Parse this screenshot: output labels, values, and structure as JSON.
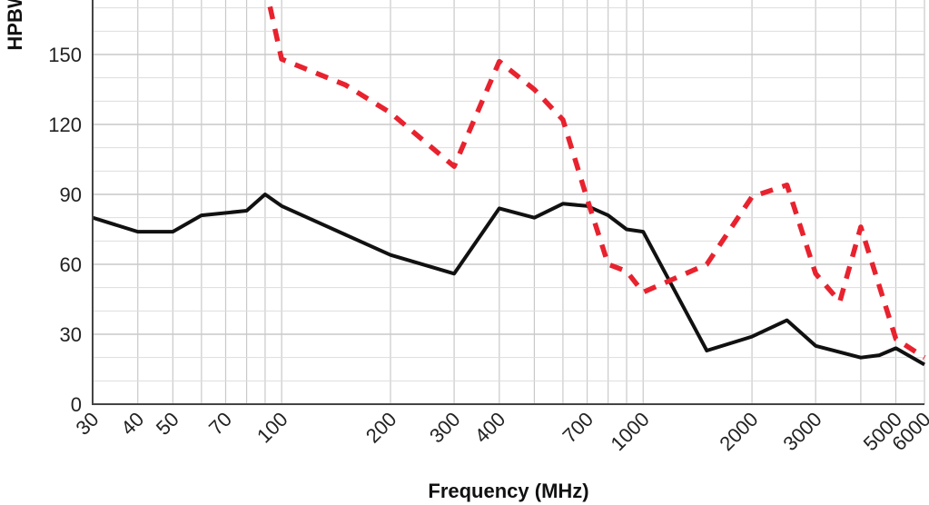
{
  "chart_data": {
    "type": "line",
    "title": "",
    "xlabel": "Frequency (MHz)",
    "ylabel": "HPBW",
    "x_scale": "log",
    "xlim": [
      30,
      6000
    ],
    "ylim": [
      0,
      170
    ],
    "grid": true,
    "x_ticks": [
      30,
      40,
      50,
      70,
      100,
      200,
      300,
      400,
      700,
      1000,
      2000,
      3000,
      5000,
      6000
    ],
    "x_tick_labels": [
      "30",
      "40",
      "50",
      "70",
      "100",
      "200",
      "300",
      "400",
      "700",
      "1000",
      "2000",
      "3000",
      "5000",
      "6000"
    ],
    "y_ticks": [
      0,
      30,
      60,
      90,
      120,
      150
    ],
    "y_tick_labels": [
      "0",
      "30",
      "60",
      "90",
      "120",
      "150"
    ],
    "colors": {
      "series_solid": "#111111",
      "series_dashed": "#e8222e",
      "grid": "#c9c9c9",
      "axis": "#444444"
    },
    "series": [
      {
        "style": "solid",
        "points": [
          [
            30,
            80
          ],
          [
            40,
            74
          ],
          [
            50,
            74
          ],
          [
            60,
            81
          ],
          [
            80,
            83
          ],
          [
            90,
            90
          ],
          [
            100,
            85
          ],
          [
            200,
            64
          ],
          [
            300,
            56
          ],
          [
            400,
            84
          ],
          [
            500,
            80
          ],
          [
            600,
            86
          ],
          [
            700,
            85
          ],
          [
            800,
            81
          ],
          [
            900,
            75
          ],
          [
            1000,
            74
          ],
          [
            1500,
            23
          ],
          [
            2000,
            29
          ],
          [
            2500,
            36
          ],
          [
            3000,
            25
          ],
          [
            4000,
            20
          ],
          [
            4500,
            21
          ],
          [
            5000,
            24
          ],
          [
            6000,
            17
          ]
        ]
      },
      {
        "style": "dashed",
        "points": [
          [
            90,
            180
          ],
          [
            100,
            148
          ],
          [
            150,
            137
          ],
          [
            200,
            125
          ],
          [
            300,
            102
          ],
          [
            400,
            147
          ],
          [
            500,
            135
          ],
          [
            600,
            122
          ],
          [
            700,
            88
          ],
          [
            800,
            60
          ],
          [
            900,
            57
          ],
          [
            1000,
            48
          ],
          [
            1500,
            60
          ],
          [
            2000,
            89
          ],
          [
            2500,
            94
          ],
          [
            3000,
            56
          ],
          [
            3500,
            44
          ],
          [
            4000,
            76
          ],
          [
            5000,
            28
          ],
          [
            6000,
            20
          ]
        ]
      }
    ]
  }
}
